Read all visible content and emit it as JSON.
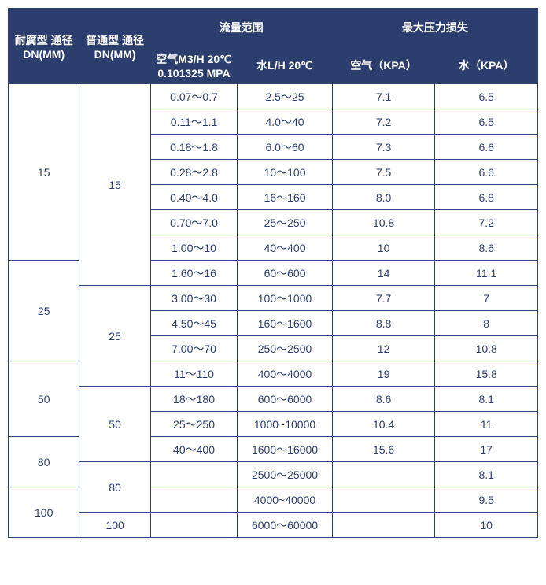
{
  "colors": {
    "header_bg": "#2c3e6e",
    "header_text": "#ffffff",
    "body_bg": "#ffffff",
    "body_text": "#2c3e6e",
    "border": "#2c3e6e"
  },
  "col_widths": [
    "90px",
    "90px",
    "110px",
    "120px",
    "130px",
    "130px"
  ],
  "headers": {
    "c1": "耐腐型 通径 DN(MM)",
    "c2": "普通型 通径 DN(MM)",
    "flow_group": "流量范围",
    "loss_group": "最大压力损失",
    "c3": "空气M3/H 20℃ 0.101325 MPA",
    "c4": "水L/H 20℃",
    "c5": "空气（KPA）",
    "c6": "水（KPA）"
  },
  "group1": {
    "dn_a": "15",
    "dn_b": "15",
    "rows": [
      {
        "air": "0.07～0.7",
        "water": "2.5～25",
        "al": "7.1",
        "wl": "6.5"
      },
      {
        "air": "0.11～1.1",
        "water": "4.0～40",
        "al": "7.2",
        "wl": "6.5"
      },
      {
        "air": "0.18～1.8",
        "water": "6.0～60",
        "al": "7.3",
        "wl": "6.6"
      },
      {
        "air": "0.28～2.8",
        "water": "10～100",
        "al": "7.5",
        "wl": "6.6"
      },
      {
        "air": "0.40～4.0",
        "water": "16～160",
        "al": "8.0",
        "wl": "6.8"
      },
      {
        "air": "0.70～7.0",
        "water": "25～250",
        "al": "10.8",
        "wl": "7.2"
      },
      {
        "air": "1.00～10",
        "water": "40～400",
        "al": "10",
        "wl": "8.6"
      }
    ]
  },
  "group2": {
    "dn_a": "25",
    "extra1": {
      "air": "1.60～16",
      "water": "60～600",
      "al": "14",
      "wl": "11.1"
    },
    "dn_b": "25",
    "rows": [
      {
        "air": "3.00～30",
        "water": "100～1000",
        "al": "7.7",
        "wl": "7"
      },
      {
        "air": "4.50～45",
        "water": "160～1600",
        "al": "8.8",
        "wl": "8"
      },
      {
        "air": "7.00～70",
        "water": "250～2500",
        "al": "12",
        "wl": "10.8"
      }
    ]
  },
  "group3": {
    "dn_a": "50",
    "extra1": {
      "air": "11～110",
      "water": "400～4000",
      "al": "19",
      "wl": "15.8"
    },
    "dn_b": "50",
    "rows": [
      {
        "air": "18～180",
        "water": "600～6000",
        "al": "8.6",
        "wl": "8.1"
      },
      {
        "air": "25～250",
        "water": "1000~10000",
        "al": "10.4",
        "wl": "11"
      }
    ]
  },
  "group4": {
    "dn_a": "80",
    "extra1": {
      "air": "40～400",
      "water": "1600～16000",
      "al": "15.6",
      "wl": "17"
    },
    "dn_b": "80",
    "r1": {
      "air": "",
      "water": "2500～25000",
      "al": "",
      "wl": "8.1"
    }
  },
  "group5": {
    "dn_a": "100",
    "r1": {
      "air": "",
      "water": "4000~40000",
      "al": "",
      "wl": "9.5"
    },
    "dn_b": "100",
    "r2": {
      "air": "",
      "water": "6000～60000",
      "al": "",
      "wl": "10"
    }
  }
}
